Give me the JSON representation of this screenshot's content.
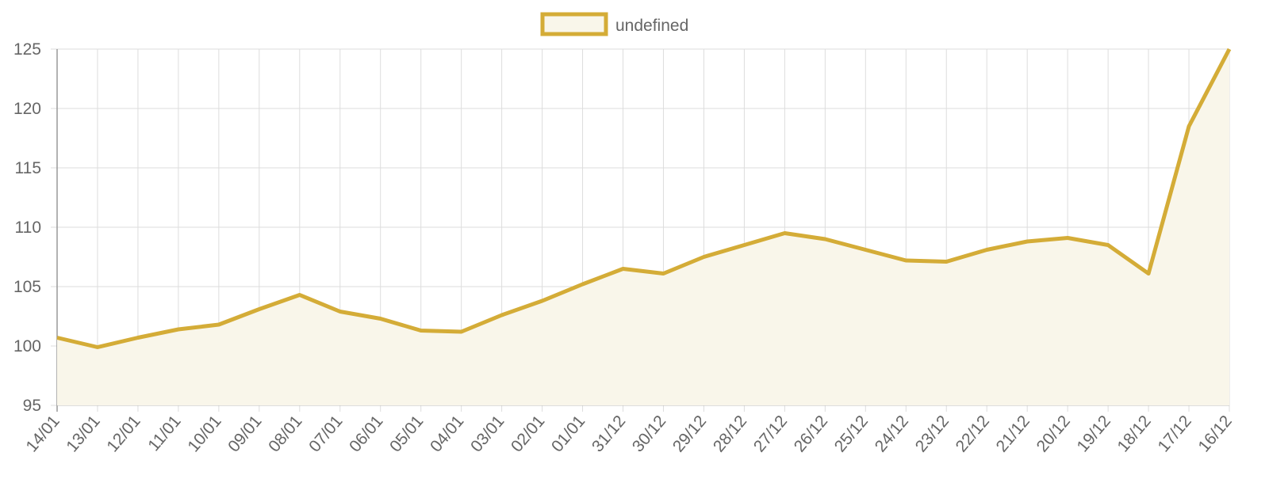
{
  "chart_data": {
    "type": "line",
    "categories": [
      "14/01",
      "13/01",
      "12/01",
      "11/01",
      "10/01",
      "09/01",
      "08/01",
      "07/01",
      "06/01",
      "05/01",
      "04/01",
      "03/01",
      "02/01",
      "01/01",
      "31/12",
      "30/12",
      "29/12",
      "28/12",
      "27/12",
      "26/12",
      "25/12",
      "24/12",
      "23/12",
      "22/12",
      "21/12",
      "20/12",
      "19/12",
      "18/12",
      "17/12",
      "16/12"
    ],
    "series": [
      {
        "name": "undefined",
        "color": "#d4ac37",
        "fill": "#f9f6ea",
        "values": [
          100.7,
          99.9,
          100.7,
          101.4,
          101.8,
          103.1,
          104.3,
          102.9,
          102.3,
          101.3,
          101.2,
          102.6,
          103.8,
          105.2,
          106.5,
          106.1,
          107.5,
          108.5,
          109.5,
          109.0,
          108.1,
          107.2,
          107.1,
          108.1,
          108.8,
          109.1,
          108.5,
          106.1,
          118.5,
          125
        ]
      }
    ],
    "ylim": [
      95,
      125
    ],
    "yticks": [
      95,
      100,
      105,
      110,
      115,
      120,
      125
    ],
    "grid": true,
    "legend": "top"
  }
}
